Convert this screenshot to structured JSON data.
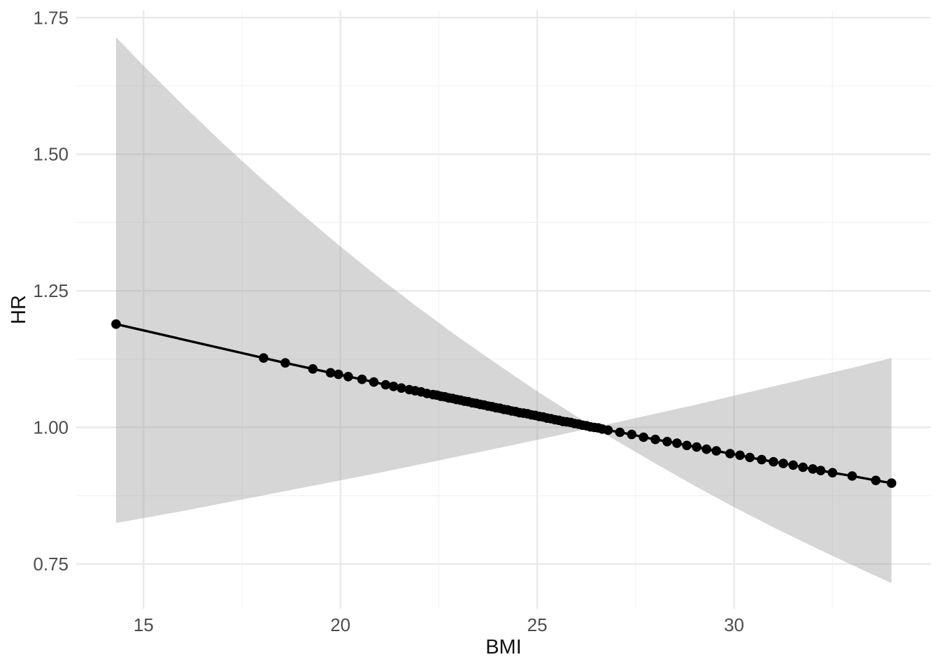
{
  "chart_data": {
    "type": "scatter",
    "title": "",
    "xlabel": "BMI",
    "ylabel": "HR",
    "xlim": [
      13.29,
      35.0
    ],
    "ylim": [
      0.668,
      1.763
    ],
    "x_ticks": [
      15,
      20,
      25,
      30
    ],
    "x_tick_labels": [
      "15",
      "20",
      "25",
      "30"
    ],
    "x_minor_ticks": [
      17.5,
      22.5,
      27.5,
      32.5
    ],
    "y_ticks": [
      1.75,
      1.5,
      1.25,
      1.0,
      0.75
    ],
    "y_tick_labels": [
      "1.75",
      "1.50",
      "1.25",
      "1.00",
      "0.75"
    ],
    "y_minor_ticks": [
      1.625,
      1.375,
      1.125,
      0.875
    ],
    "grid": "on",
    "legend": "none",
    "reference_bmi": 26.45,
    "ribbon": [
      [
        14.3,
        0.825,
        1.714
      ],
      [
        15,
        0.834,
        1.662
      ],
      [
        16,
        0.847,
        1.59
      ],
      [
        17,
        0.861,
        1.521
      ],
      [
        18,
        0.875,
        1.455
      ],
      [
        19,
        0.889,
        1.392
      ],
      [
        20,
        0.903,
        1.331
      ],
      [
        21,
        0.917,
        1.273
      ],
      [
        22,
        0.932,
        1.218
      ],
      [
        23,
        0.947,
        1.165
      ],
      [
        24,
        0.962,
        1.115
      ],
      [
        25,
        0.977,
        1.066
      ],
      [
        26,
        0.993,
        1.02
      ],
      [
        26.45,
        1.0,
        1.0
      ],
      [
        27,
        0.976,
        1.009
      ],
      [
        28,
        0.934,
        1.025
      ],
      [
        29,
        0.893,
        1.041
      ],
      [
        30,
        0.854,
        1.058
      ],
      [
        31,
        0.817,
        1.075
      ],
      [
        32,
        0.782,
        1.092
      ],
      [
        33,
        0.748,
        1.109
      ],
      [
        34,
        0.715,
        1.127
      ]
    ],
    "points": [
      [
        14.3,
        1.189
      ],
      [
        18.05,
        1.127
      ],
      [
        18.6,
        1.118
      ],
      [
        19.3,
        1.107
      ],
      [
        19.75,
        1.1
      ],
      [
        19.95,
        1.097
      ],
      [
        20.2,
        1.093
      ],
      [
        20.55,
        1.088
      ],
      [
        20.85,
        1.083
      ],
      [
        21.15,
        1.078
      ],
      [
        21.35,
        1.075
      ],
      [
        21.55,
        1.072
      ],
      [
        21.75,
        1.069
      ],
      [
        21.9,
        1.067
      ],
      [
        22.05,
        1.065
      ],
      [
        22.2,
        1.062
      ],
      [
        22.35,
        1.06
      ],
      [
        22.45,
        1.059
      ],
      [
        22.55,
        1.057
      ],
      [
        22.65,
        1.056
      ],
      [
        22.75,
        1.054
      ],
      [
        22.85,
        1.053
      ],
      [
        22.95,
        1.051
      ],
      [
        23.05,
        1.05
      ],
      [
        23.15,
        1.048
      ],
      [
        23.25,
        1.047
      ],
      [
        23.35,
        1.045
      ],
      [
        23.45,
        1.044
      ],
      [
        23.55,
        1.042
      ],
      [
        23.65,
        1.041
      ],
      [
        23.75,
        1.039
      ],
      [
        23.85,
        1.038
      ],
      [
        23.95,
        1.036
      ],
      [
        24.05,
        1.035
      ],
      [
        24.15,
        1.033
      ],
      [
        24.25,
        1.032
      ],
      [
        24.35,
        1.03
      ],
      [
        24.45,
        1.029
      ],
      [
        24.55,
        1.027
      ],
      [
        24.65,
        1.026
      ],
      [
        24.75,
        1.025
      ],
      [
        24.85,
        1.023
      ],
      [
        24.95,
        1.022
      ],
      [
        25.05,
        1.02
      ],
      [
        25.15,
        1.019
      ],
      [
        25.25,
        1.017
      ],
      [
        25.35,
        1.016
      ],
      [
        25.45,
        1.014
      ],
      [
        25.55,
        1.013
      ],
      [
        25.65,
        1.011
      ],
      [
        25.75,
        1.01
      ],
      [
        25.85,
        1.009
      ],
      [
        25.95,
        1.007
      ],
      [
        26.05,
        1.006
      ],
      [
        26.15,
        1.004
      ],
      [
        26.25,
        1.003
      ],
      [
        26.35,
        1.001
      ],
      [
        26.45,
        1.0
      ],
      [
        26.55,
        0.999
      ],
      [
        26.65,
        0.997
      ],
      [
        26.8,
        0.995
      ],
      [
        27.1,
        0.991
      ],
      [
        27.4,
        0.987
      ],
      [
        27.7,
        0.982
      ],
      [
        28.0,
        0.978
      ],
      [
        28.3,
        0.974
      ],
      [
        28.55,
        0.971
      ],
      [
        28.8,
        0.967
      ],
      [
        29.05,
        0.964
      ],
      [
        29.3,
        0.96
      ],
      [
        29.55,
        0.957
      ],
      [
        29.9,
        0.952
      ],
      [
        30.15,
        0.949
      ],
      [
        30.4,
        0.945
      ],
      [
        30.7,
        0.941
      ],
      [
        31.0,
        0.937
      ],
      [
        31.25,
        0.934
      ],
      [
        31.5,
        0.931
      ],
      [
        31.75,
        0.927
      ],
      [
        32.0,
        0.924
      ],
      [
        32.2,
        0.921
      ],
      [
        32.5,
        0.917
      ],
      [
        33.0,
        0.911
      ],
      [
        33.6,
        0.903
      ],
      [
        34.0,
        0.898
      ]
    ],
    "colors": {
      "background": "#ffffff",
      "ribbon_fill": "#999999",
      "ribbon_opacity": 0.4,
      "line": "#000000",
      "point": "#000000",
      "tick_text": "#4d4d4d",
      "axis_title_text": "#111111",
      "grid_major": "#e9e9e9",
      "grid_minor": "#f3f3f3"
    }
  }
}
